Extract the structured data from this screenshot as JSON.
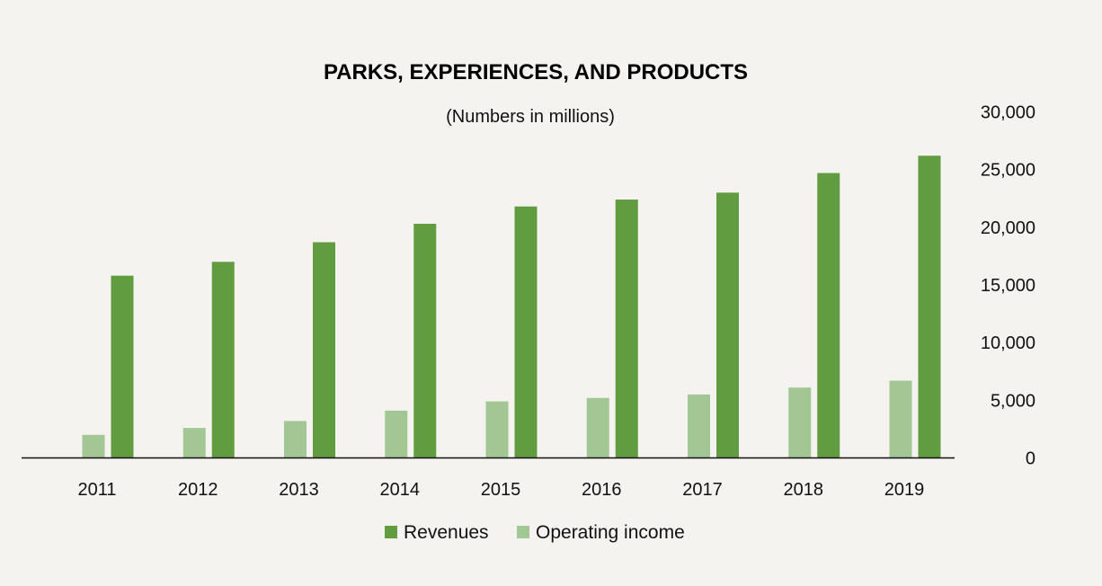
{
  "chart_data": {
    "type": "bar",
    "title": "PARKS, EXPERIENCES, AND PRODUCTS",
    "subtitle": "(Numbers in millions)",
    "xlabel": "",
    "ylabel": "",
    "categories": [
      "2011",
      "2012",
      "2013",
      "2014",
      "2015",
      "2016",
      "2017",
      "2018",
      "2019"
    ],
    "series": [
      {
        "name": "Operating income",
        "color": "#a3c794",
        "values": [
          2000,
          2600,
          3200,
          4100,
          4900,
          5200,
          5500,
          6100,
          6700
        ]
      },
      {
        "name": "Revenues",
        "color": "#629c40",
        "values": [
          15800,
          17000,
          18700,
          20300,
          21800,
          22400,
          23000,
          24700,
          26200
        ]
      }
    ],
    "ylim": [
      0,
      30000
    ],
    "yticks": [
      "0",
      "5,000",
      "10,000",
      "15,000",
      "20,000",
      "25,000",
      "30,000"
    ],
    "y_axis_side": "right",
    "grid": false,
    "legend": {
      "placement": "bottom-center",
      "entries": [
        "Revenues",
        "Operating income"
      ]
    }
  }
}
